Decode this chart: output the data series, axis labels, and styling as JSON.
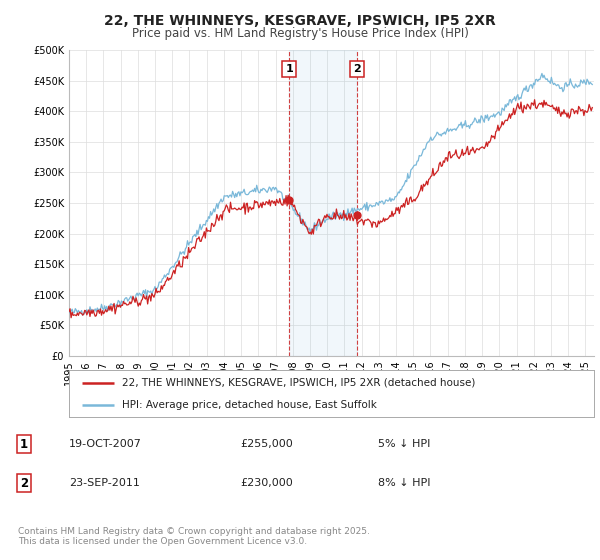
{
  "title": "22, THE WHINNEYS, KESGRAVE, IPSWICH, IP5 2XR",
  "subtitle": "Price paid vs. HM Land Registry's House Price Index (HPI)",
  "ylim": [
    0,
    500000
  ],
  "yticks": [
    0,
    50000,
    100000,
    150000,
    200000,
    250000,
    300000,
    350000,
    400000,
    450000,
    500000
  ],
  "ytick_labels": [
    "£0",
    "£50K",
    "£100K",
    "£150K",
    "£200K",
    "£250K",
    "£300K",
    "£350K",
    "£400K",
    "£450K",
    "£500K"
  ],
  "xlim_start": 1995.0,
  "xlim_end": 2025.5,
  "xticks": [
    1995,
    1996,
    1997,
    1998,
    1999,
    2000,
    2001,
    2002,
    2003,
    2004,
    2005,
    2006,
    2007,
    2008,
    2009,
    2010,
    2011,
    2012,
    2013,
    2014,
    2015,
    2016,
    2017,
    2018,
    2019,
    2020,
    2021,
    2022,
    2023,
    2024,
    2025
  ],
  "background_color": "#ffffff",
  "grid_color": "#dddddd",
  "hpi_color": "#7ab8d9",
  "price_color": "#cc2222",
  "sale1_x": 2007.8,
  "sale1_y": 255000,
  "sale1_label": "1",
  "sale1_date": "19-OCT-2007",
  "sale1_price": "£255,000",
  "sale1_note": "5% ↓ HPI",
  "sale2_x": 2011.73,
  "sale2_y": 230000,
  "sale2_label": "2",
  "sale2_date": "23-SEP-2011",
  "sale2_price": "£230,000",
  "sale2_note": "8% ↓ HPI",
  "shade_x1": 2007.8,
  "shade_x2": 2011.73,
  "legend_line1": "22, THE WHINNEYS, KESGRAVE, IPSWICH, IP5 2XR (detached house)",
  "legend_line2": "HPI: Average price, detached house, East Suffolk",
  "footnote": "Contains HM Land Registry data © Crown copyright and database right 2025.\nThis data is licensed under the Open Government Licence v3.0.",
  "title_fontsize": 10,
  "subtitle_fontsize": 8.5,
  "tick_fontsize": 7,
  "legend_fontsize": 7.5,
  "annotation_fontsize": 8,
  "footnote_fontsize": 6.5
}
